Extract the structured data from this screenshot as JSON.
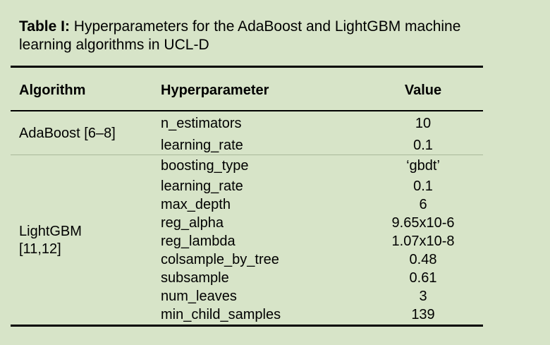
{
  "caption": {
    "label": "Table I:",
    "text": " Hyperparameters for the AdaBoost and LightGBM machine learning algorithms in UCL-D"
  },
  "table": {
    "headers": {
      "algorithm": "Algorithm",
      "hyperparameter": "Hyperparameter",
      "value": "Value"
    },
    "groups": [
      {
        "algorithm": "AdaBoost [6–8]",
        "rows": [
          {
            "param": "n_estimators",
            "value": "10"
          },
          {
            "param": "learning_rate",
            "value": "0.1"
          }
        ]
      },
      {
        "algorithm": "LightGBM [11,12]",
        "rows": [
          {
            "param": "boosting_type",
            "value": "‘gbdt’"
          },
          {
            "param": "learning_rate",
            "value": "0.1"
          },
          {
            "param": "max_depth",
            "value": "6"
          },
          {
            "param": "reg_alpha",
            "value": "9.65x10-6"
          },
          {
            "param": "reg_lambda",
            "value": "1.07x10-8"
          },
          {
            "param": "colsample_by_tree",
            "value": "0.48"
          },
          {
            "param": "subsample",
            "value": "0.61"
          },
          {
            "param": "num_leaves",
            "value": "3"
          },
          {
            "param": "min_child_samples",
            "value": "139"
          }
        ]
      }
    ]
  }
}
